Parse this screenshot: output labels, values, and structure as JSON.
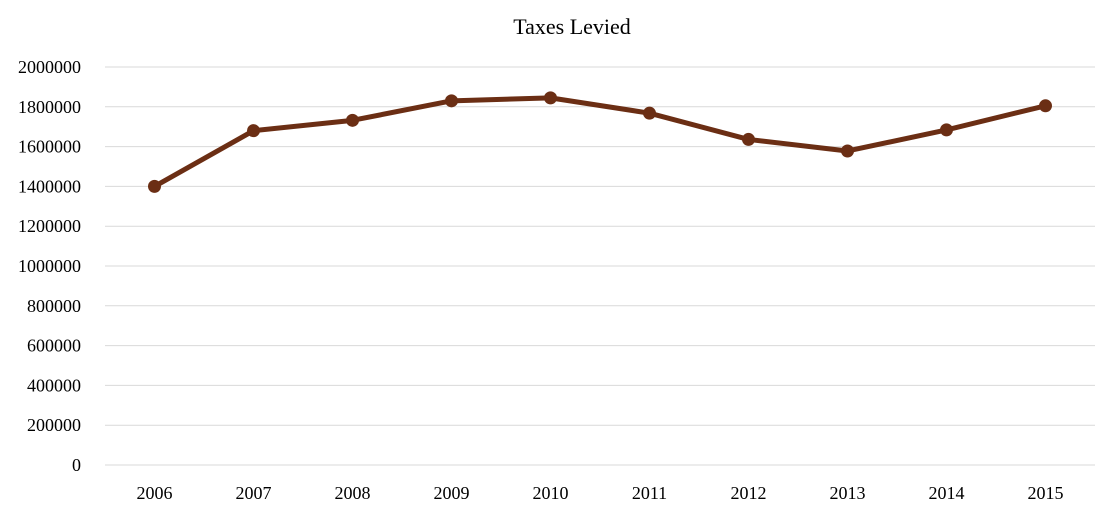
{
  "chart_data": {
    "type": "line",
    "title": "Taxes Levied",
    "xlabel": "",
    "ylabel": "",
    "categories": [
      "2006",
      "2007",
      "2008",
      "2009",
      "2010",
      "2011",
      "2012",
      "2013",
      "2014",
      "2015"
    ],
    "series": [
      {
        "values": [
          1400000,
          1680000,
          1732000,
          1830000,
          1845000,
          1768000,
          1636000,
          1578000,
          1684000,
          1805000
        ],
        "color": "#6b2e14"
      }
    ],
    "ylim": [
      0,
      2000000
    ],
    "yticks": [
      "0",
      "200000",
      "400000",
      "600000",
      "800000",
      "1000000",
      "1200000",
      "1400000",
      "1600000",
      "1800000",
      "2000000"
    ],
    "grid": "horizontal",
    "legend": "none",
    "markers": true
  }
}
